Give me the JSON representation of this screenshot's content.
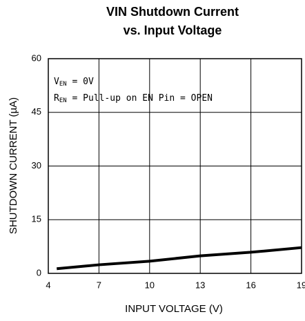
{
  "chart_data": {
    "type": "line",
    "title": "VIN Shutdown Current",
    "subtitle": "vs. Input Voltage",
    "x_label": "INPUT VOLTAGE (V)",
    "y_label": "SHUTDOWN CURRENT (µA)",
    "annotations": [
      {
        "main": "V",
        "sub": "EN",
        "rest": " = 0V"
      },
      {
        "main": "R",
        "sub": "EN",
        "rest": " = Pull-up on EN Pin = OPEN"
      }
    ],
    "x": [
      4.5,
      7,
      10,
      13,
      16,
      19
    ],
    "series": [
      {
        "name": "Shutdown Current",
        "color": "#000000",
        "values": [
          1.3,
          2.4,
          3.4,
          4.9,
          5.9,
          7.2
        ]
      }
    ],
    "xlim": [
      4,
      19
    ],
    "xticks": [
      4,
      7,
      10,
      13,
      16,
      19
    ],
    "ylim": [
      0,
      60
    ],
    "yticks": [
      0,
      15,
      30,
      45,
      60
    ],
    "grid": true
  }
}
